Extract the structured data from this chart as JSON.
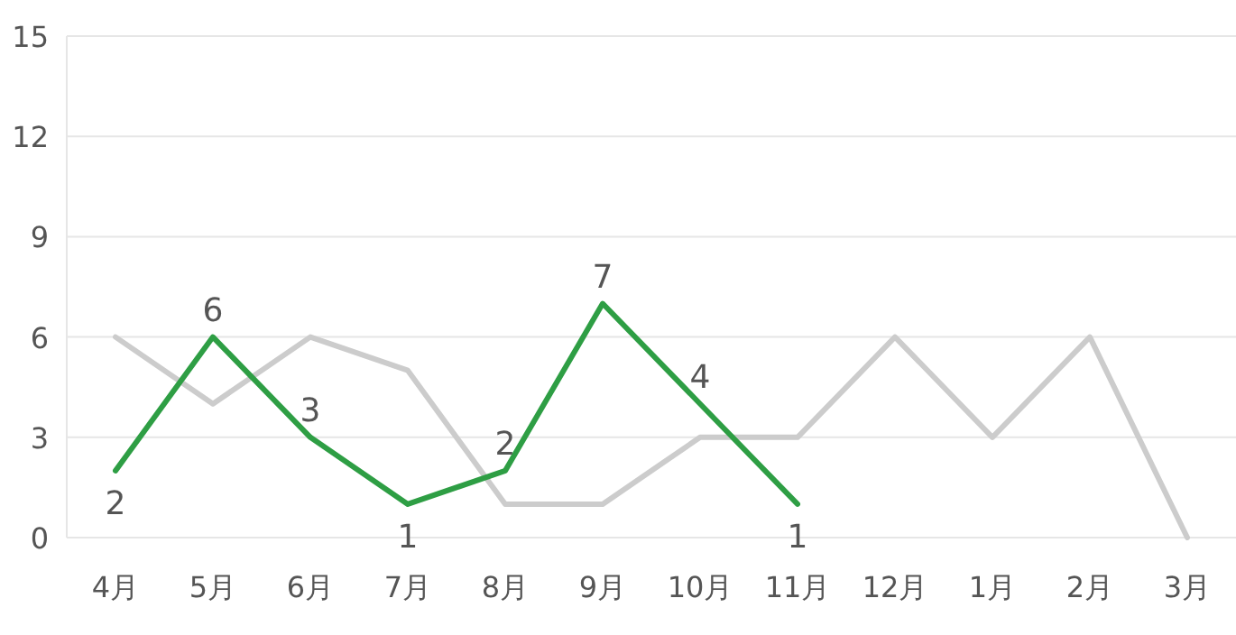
{
  "chart_data": {
    "type": "line",
    "categories": [
      "4月",
      "5月",
      "6月",
      "7月",
      "8月",
      "9月",
      "10月",
      "11月",
      "12月",
      "1月",
      "2月",
      "3月"
    ],
    "ylim": [
      0,
      15
    ],
    "yticks": [
      0,
      3,
      6,
      9,
      12,
      15
    ],
    "grid": "y",
    "marker": "none",
    "line_style": "solid",
    "series": [
      {
        "color": "#cccccc",
        "values": [
          6,
          4,
          6,
          5,
          1,
          1,
          3,
          3,
          6,
          3,
          6,
          0
        ]
      },
      {
        "color": "#2e9e44",
        "values": [
          2,
          6,
          3,
          1,
          2,
          7,
          4,
          1,
          null,
          null,
          null,
          null
        ],
        "value_labels": [
          "2",
          "6",
          "3",
          "1",
          "2",
          "7",
          "4",
          "1",
          null,
          null,
          null,
          null
        ]
      }
    ]
  }
}
